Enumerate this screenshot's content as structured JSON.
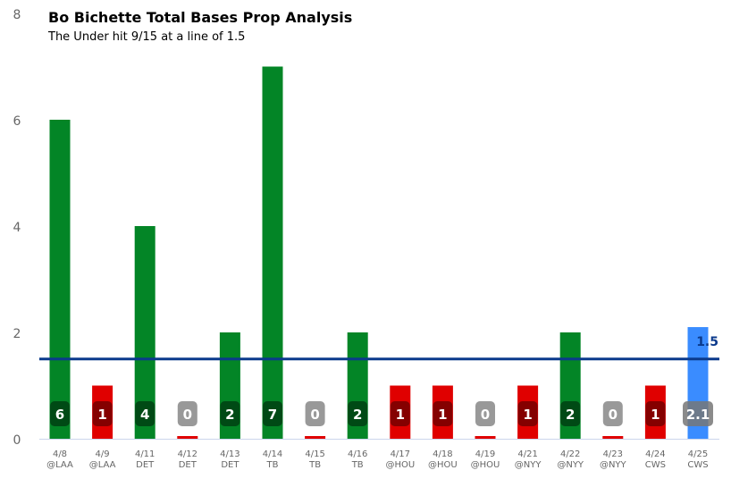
{
  "chart_data": {
    "type": "bar",
    "title": "Bo Bichette Total Bases Prop Analysis",
    "subtitle": "The Under hit 9/15 at a line of 1.5",
    "categories": [
      [
        "4/8",
        "@LAA"
      ],
      [
        "4/9",
        "@LAA"
      ],
      [
        "4/11",
        "DET"
      ],
      [
        "4/12",
        "DET"
      ],
      [
        "4/13",
        "DET"
      ],
      [
        "4/14",
        "TB"
      ],
      [
        "4/15",
        "TB"
      ],
      [
        "4/16",
        "TB"
      ],
      [
        "4/17",
        "@HOU"
      ],
      [
        "4/18",
        "@HOU"
      ],
      [
        "4/19",
        "@HOU"
      ],
      [
        "4/21",
        "@NYY"
      ],
      [
        "4/22",
        "@NYY"
      ],
      [
        "4/23",
        "@NYY"
      ],
      [
        "4/24",
        "CWS"
      ],
      [
        "4/25",
        "CWS"
      ]
    ],
    "values": [
      6,
      1,
      4,
      0,
      2,
      7,
      0,
      2,
      1,
      1,
      0,
      1,
      2,
      0,
      1,
      2.1
    ],
    "data_labels": [
      "6",
      "1",
      "4",
      "0",
      "2",
      "7",
      "0",
      "2",
      "1",
      "1",
      "0",
      "1",
      "2",
      "0",
      "1",
      "2.1"
    ],
    "outcomes": [
      "over",
      "under",
      "over",
      "under",
      "over",
      "over",
      "under",
      "over",
      "under",
      "under",
      "under",
      "under",
      "over",
      "under",
      "under",
      "projection"
    ],
    "line": {
      "value": 1.5,
      "label": "1.5",
      "color": "#0b3a8c"
    },
    "ylim": [
      0,
      8
    ],
    "yticks": [
      0,
      2,
      4,
      6,
      8
    ],
    "grid": false,
    "colors": {
      "over": "#038526",
      "under": "#e00000",
      "projection": "#3a8cff",
      "over_badge": "#004a15",
      "under_badge": "#850000",
      "zero_badge": "#999999",
      "projection_badge": "#777777"
    }
  }
}
